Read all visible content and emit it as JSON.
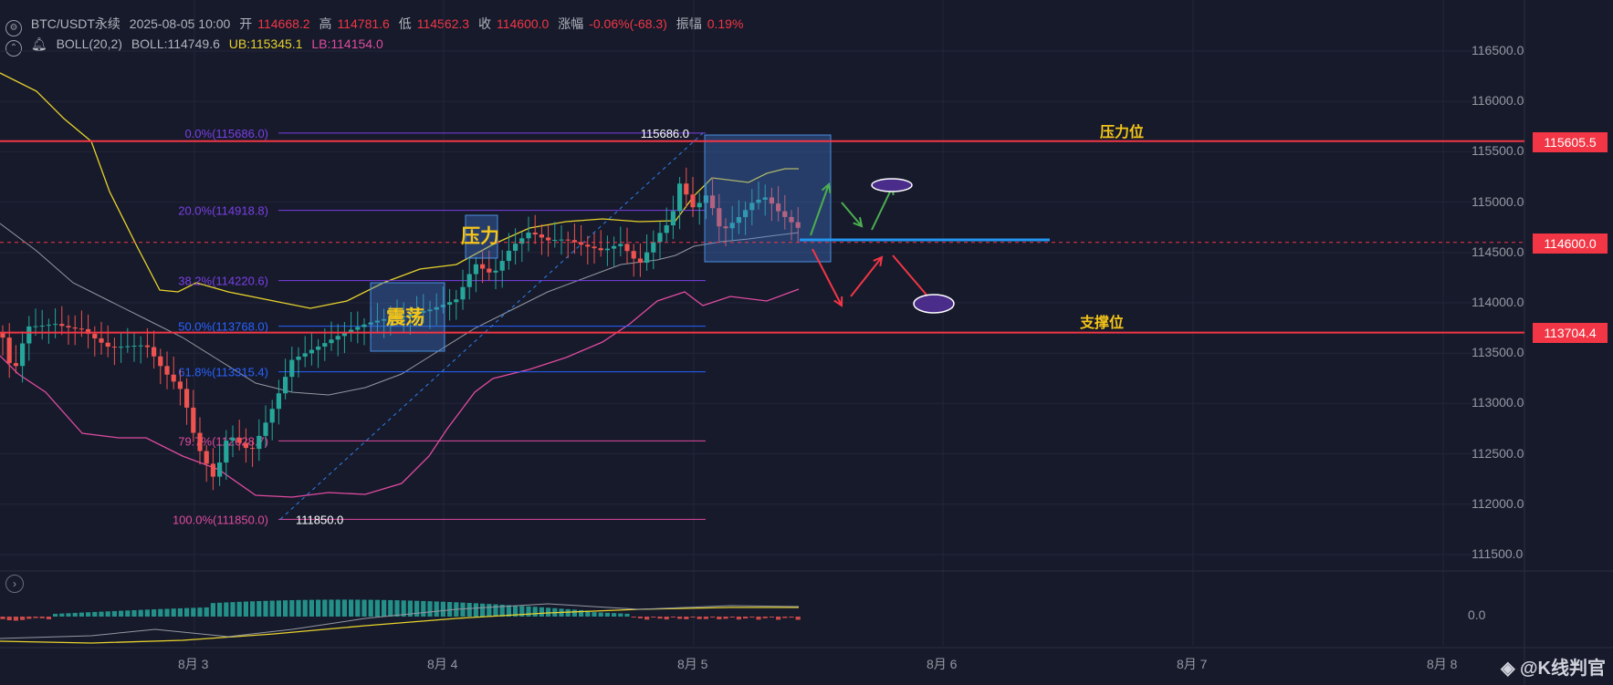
{
  "header": {
    "symbol": "BTC/USDT永续",
    "datetime": "2025-08-05 10:00",
    "open_label": "开",
    "open": "114668.2",
    "high_label": "高",
    "high": "114781.6",
    "low_label": "低",
    "low": "114562.3",
    "close_label": "收",
    "close": "114600.0",
    "change_label": "涨幅",
    "change": "-0.06%(-68.3)",
    "amp_label": "振幅",
    "amp": "0.19%"
  },
  "indicator": {
    "name": "BOLL(20,2)",
    "mid": "BOLL:114749.6",
    "ub": "UB:115345.1",
    "lb": "LB:114154.0"
  },
  "price_axis": [
    "116500.0",
    "116000.0",
    "115500.0",
    "115000.0",
    "114500.0",
    "114000.0",
    "113500.0",
    "113000.0",
    "112500.0",
    "112000.0",
    "111500.0"
  ],
  "price_tags": {
    "resistance": "115605.5",
    "current": "114600.0",
    "support": "113704.4"
  },
  "macd_axis": "0.0",
  "date_axis": [
    "8月 3",
    "8月 4",
    "8月 5",
    "8月 6",
    "8月 7",
    "8月 8"
  ],
  "fib": [
    {
      "label": "0.0%(115686.0)",
      "price": 115686.0,
      "color": "#7b3fe4"
    },
    {
      "label": "20.0%(114918.8)",
      "price": 114918.8,
      "color": "#7b3fe4"
    },
    {
      "label": "38.2%(114220.6)",
      "price": 114220.6,
      "color": "#7b3fe4"
    },
    {
      "label": "50.0%(113768.0)",
      "price": 113768.0,
      "color": "#2962ff"
    },
    {
      "label": "61.8%(113315.4)",
      "price": 113315.4,
      "color": "#2962ff"
    },
    {
      "label": "79.7%(112628.7)",
      "price": 112628.7,
      "color": "#e04ba0"
    },
    {
      "label": "100.0%(111850.0)",
      "price": 111850.0,
      "color": "#e04ba0"
    }
  ],
  "fib_ends": {
    "high": "115686.0",
    "low": "111850.0"
  },
  "annotations": {
    "resistance_label": "压力位",
    "support_label": "支撑位",
    "pressure_box": "压力",
    "range_box": "震荡"
  },
  "watermark": "@K线判官",
  "colors": {
    "background": "#161a2b",
    "up": "#26a69a",
    "down": "#ef5350",
    "level": "#f23645",
    "ub": "#e8d22c",
    "lb": "#e04ba0",
    "mid": "#9598a1"
  }
}
